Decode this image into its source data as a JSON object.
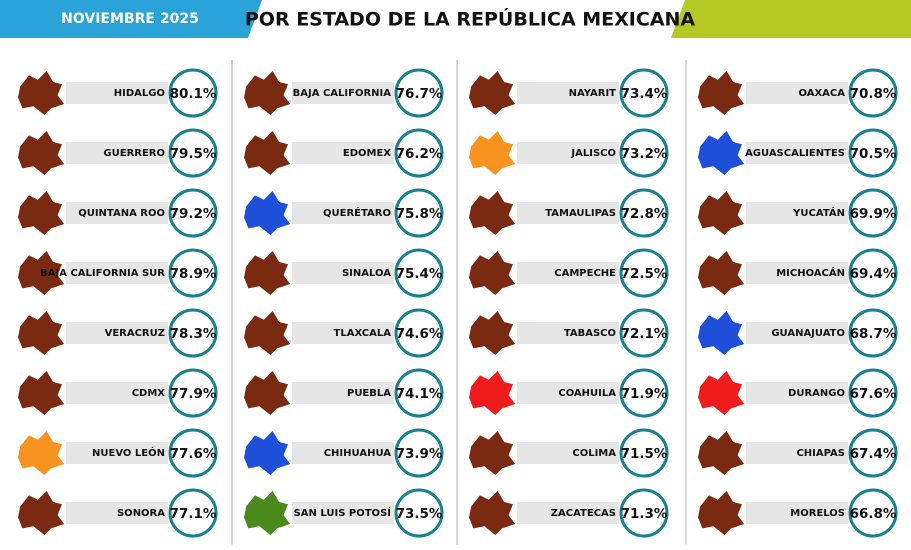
{
  "header": {
    "date": "NOVIEMBRE 2025",
    "title": "POR ESTADO DE LA REPÚBLICA MEXICANA"
  },
  "columns": [
    [
      {
        "name": "HIDALGO",
        "value": "80.1%",
        "color": "#7b2a12"
      },
      {
        "name": "GUERRERO",
        "value": "79.5%",
        "color": "#7b2a12"
      },
      {
        "name": "QUINTANA ROO",
        "value": "79.2%",
        "color": "#7b2a12"
      },
      {
        "name": "BAJA CALIFORNIA SUR",
        "value": "78.9%",
        "color": "#7b2a12"
      },
      {
        "name": "VERACRUZ",
        "value": "78.3%",
        "color": "#7b2a12"
      },
      {
        "name": "CDMX",
        "value": "77.9%",
        "color": "#7b2a12"
      },
      {
        "name": "NUEVO LEÓN",
        "value": "77.6%",
        "color": "#f7931e"
      },
      {
        "name": "SONORA",
        "value": "77.1%",
        "color": "#7b2a12"
      }
    ],
    [
      {
        "name": "BAJA CALIFORNIA",
        "value": "76.7%",
        "color": "#7b2a12"
      },
      {
        "name": "EDOMEX",
        "value": "76.2%",
        "color": "#7b2a12"
      },
      {
        "name": "QUERÉTARO",
        "value": "75.8%",
        "color": "#1f4fd8"
      },
      {
        "name": "SINALOA",
        "value": "75.4%",
        "color": "#7b2a12"
      },
      {
        "name": "TLAXCALA",
        "value": "74.6%",
        "color": "#7b2a12"
      },
      {
        "name": "PUEBLA",
        "value": "74.1%",
        "color": "#7b2a12"
      },
      {
        "name": "CHIHUAHUA",
        "value": "73.9%",
        "color": "#1f4fd8"
      },
      {
        "name": "SAN LUIS POTOSÍ",
        "value": "73.5%",
        "color": "#4a8a1c"
      }
    ],
    [
      {
        "name": "NAYARIT",
        "value": "73.4%",
        "color": "#7b2a12"
      },
      {
        "name": "JALISCO",
        "value": "73.2%",
        "color": "#f7931e"
      },
      {
        "name": "TAMAULIPAS",
        "value": "72.8%",
        "color": "#7b2a12"
      },
      {
        "name": "CAMPECHE",
        "value": "72.5%",
        "color": "#7b2a12"
      },
      {
        "name": "TABASCO",
        "value": "72.1%",
        "color": "#7b2a12"
      },
      {
        "name": "COAHUILA",
        "value": "71.9%",
        "color": "#ee1c1c"
      },
      {
        "name": "COLIMA",
        "value": "71.5%",
        "color": "#7b2a12"
      },
      {
        "name": "ZACATECAS",
        "value": "71.3%",
        "color": "#7b2a12"
      }
    ],
    [
      {
        "name": "OAXACA",
        "value": "70.8%",
        "color": "#7b2a12"
      },
      {
        "name": "AGUASCALIENTES",
        "value": "70.5%",
        "color": "#1f4fd8"
      },
      {
        "name": "YUCATÁN",
        "value": "69.9%",
        "color": "#7b2a12"
      },
      {
        "name": "MICHOACÁN",
        "value": "69.4%",
        "color": "#7b2a12"
      },
      {
        "name": "GUANAJUATO",
        "value": "68.7%",
        "color": "#1f4fd8"
      },
      {
        "name": "DURANGO",
        "value": "67.6%",
        "color": "#ee1c1c"
      },
      {
        "name": "CHIAPAS",
        "value": "67.4%",
        "color": "#7b2a12"
      },
      {
        "name": "MORELOS",
        "value": "66.8%",
        "color": "#7b2a12"
      }
    ]
  ]
}
